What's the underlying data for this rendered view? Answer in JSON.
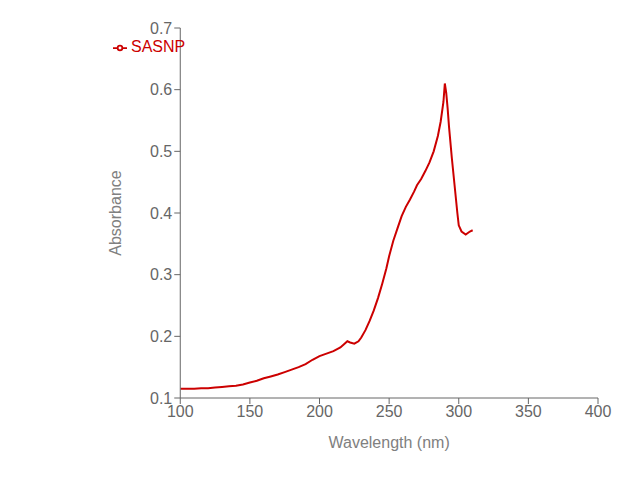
{
  "chart_data": {
    "type": "line",
    "xlabel": "Wavelength (nm)",
    "ylabel": "Absorbance",
    "x": [
      100,
      105,
      110,
      115,
      120,
      125,
      130,
      135,
      140,
      145,
      150,
      155,
      160,
      165,
      170,
      175,
      180,
      185,
      190,
      195,
      200,
      205,
      210,
      215,
      218,
      220,
      222,
      225,
      228,
      230,
      233,
      236,
      239,
      242,
      245,
      248,
      250,
      253,
      256,
      259,
      262,
      265,
      268,
      270,
      273,
      276,
      279,
      282,
      285,
      287,
      289,
      290,
      291,
      292,
      293,
      295,
      297,
      299,
      300,
      302,
      305,
      308,
      310
    ],
    "series": [
      {
        "name": "SASNP",
        "color": "#cc0000",
        "values": [
          0.115,
          0.115,
          0.115,
          0.116,
          0.116,
          0.117,
          0.118,
          0.119,
          0.12,
          0.122,
          0.125,
          0.128,
          0.132,
          0.135,
          0.138,
          0.142,
          0.146,
          0.15,
          0.155,
          0.162,
          0.168,
          0.172,
          0.176,
          0.182,
          0.188,
          0.192,
          0.19,
          0.188,
          0.192,
          0.198,
          0.21,
          0.225,
          0.242,
          0.262,
          0.285,
          0.31,
          0.33,
          0.355,
          0.375,
          0.395,
          0.41,
          0.422,
          0.435,
          0.445,
          0.455,
          0.468,
          0.482,
          0.5,
          0.525,
          0.548,
          0.58,
          0.61,
          0.595,
          0.57,
          0.54,
          0.49,
          0.445,
          0.4,
          0.38,
          0.37,
          0.365,
          0.37,
          0.372
        ]
      }
    ],
    "xlim": [
      100,
      400
    ],
    "ylim": [
      0.1,
      0.7
    ],
    "xticks": [
      100,
      150,
      200,
      250,
      300,
      350,
      400
    ],
    "yticks": [
      0.1,
      0.2,
      0.3,
      0.4,
      0.5,
      0.6,
      0.7
    ],
    "grid": false,
    "legend": "upper left"
  }
}
